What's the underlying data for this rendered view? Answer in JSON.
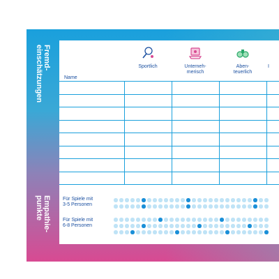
{
  "side_labels": {
    "top": "Fremd-\neinschätzungen",
    "bottom": "Empathie-\npunkte"
  },
  "table": {
    "name_header": "Name",
    "columns": [
      {
        "label": "Sportlich",
        "icon": "ping-pong-icon"
      },
      {
        "label": "Unterneh-\nmerisch",
        "icon": "laptop-icon"
      },
      {
        "label": "Aben-\nteuerlich",
        "icon": "binoculars-icon"
      },
      {
        "label": "I",
        "icon": ""
      }
    ],
    "row_count": 8
  },
  "empathy": {
    "sections": [
      {
        "label": "Für Spiele mit\n3-5 Personen",
        "rows": [
          [
            0,
            0,
            0,
            0,
            0,
            1,
            0,
            0,
            0,
            0,
            0,
            0,
            0,
            1,
            0,
            0,
            0,
            0,
            0,
            0,
            0,
            0,
            0,
            0,
            0,
            1,
            0,
            0
          ],
          [
            0,
            0,
            0,
            0,
            0,
            1,
            0,
            0,
            0,
            0,
            0,
            0,
            0,
            1,
            0,
            0,
            0,
            0,
            0,
            0,
            0,
            0,
            0,
            0,
            0,
            1,
            0,
            0
          ]
        ]
      },
      {
        "label": "Für Spiele mit\n6-8 Personen",
        "rows": [
          [
            0,
            0,
            0,
            0,
            0,
            0,
            0,
            0,
            1,
            0,
            0,
            0,
            0,
            0,
            0,
            0,
            0,
            0,
            0,
            1,
            0,
            0,
            0,
            0,
            0,
            0,
            0,
            0
          ],
          [
            0,
            0,
            0,
            0,
            0,
            1,
            0,
            0,
            0,
            0,
            0,
            0,
            0,
            0,
            0,
            1,
            0,
            0,
            0,
            0,
            0,
            0,
            0,
            0,
            1,
            0,
            0,
            0
          ],
          [
            0,
            0,
            0,
            1,
            0,
            0,
            0,
            0,
            0,
            0,
            0,
            1,
            0,
            0,
            0,
            0,
            0,
            0,
            0,
            0,
            1,
            0,
            0,
            0,
            0,
            0,
            0,
            1
          ]
        ]
      }
    ]
  },
  "colors": {
    "accent": "#1aa0dc",
    "text": "#1a4fa0",
    "dot_on": "#1a8fd8",
    "dot_off": "#bfe3f6"
  }
}
